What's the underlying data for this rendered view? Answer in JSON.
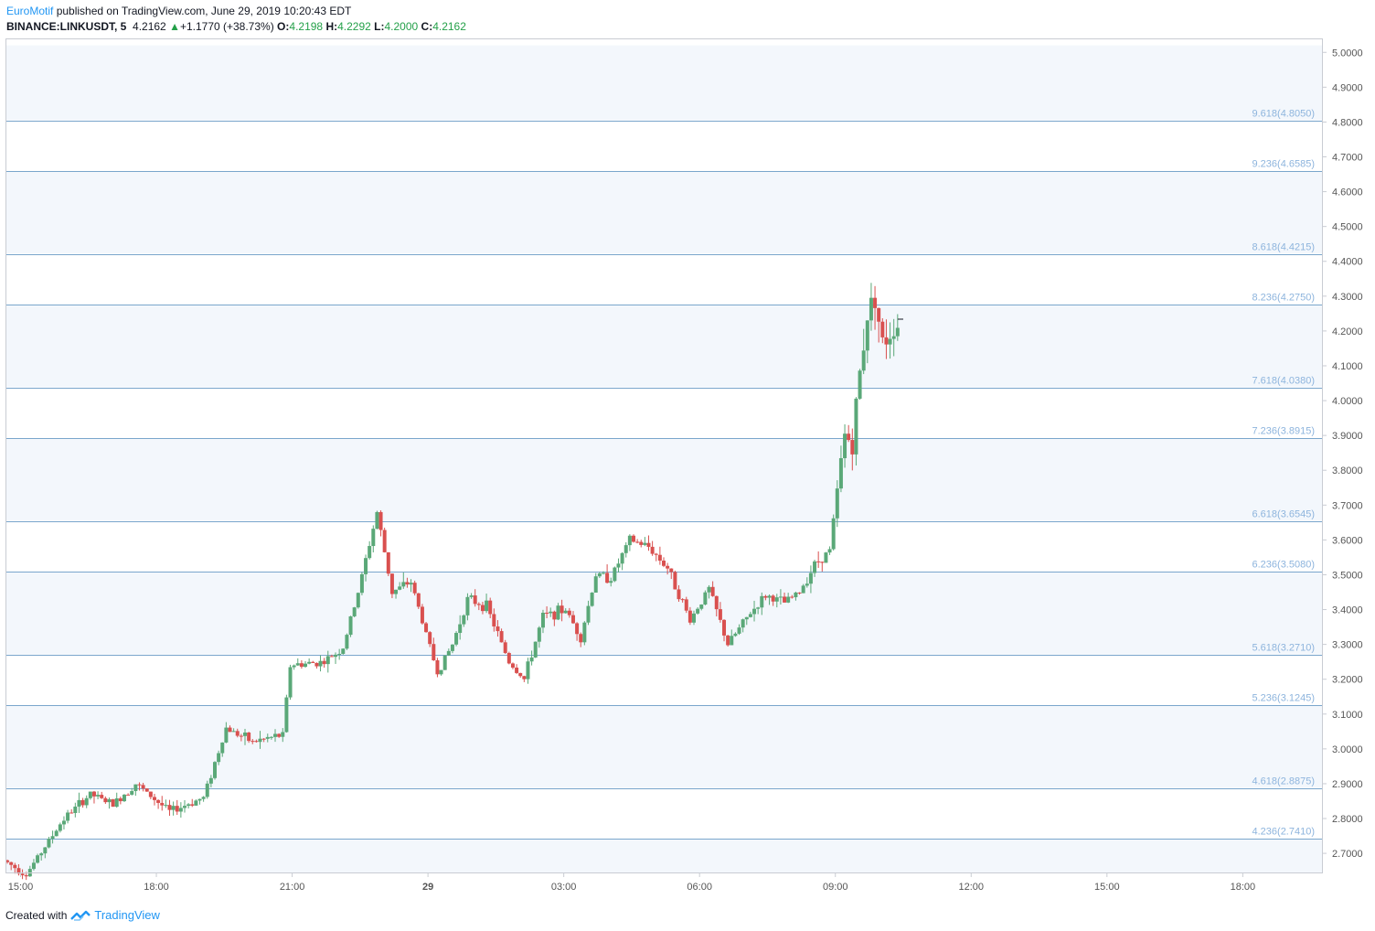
{
  "header": {
    "author": "EuroMotif",
    "published_text": " published on TradingView.com, June 29, 2019 10:20:43 EDT",
    "symbol": "BINANCE:LINKUSDT, 5",
    "last": "4.2162",
    "change_arrow": "▲",
    "change": "+1.1770 (+38.73%)",
    "o_label": "O:",
    "o_value": "4.2198",
    "h_label": "H:",
    "h_value": "4.2292",
    "l_label": "L:",
    "l_value": "4.2000",
    "c_label": "C:",
    "c_value": "4.2162"
  },
  "footer": {
    "created_with": "Created with",
    "brand": "TradingView"
  },
  "colors": {
    "up": "#5aa878",
    "down": "#d9504f",
    "fib_line": "#7aa6cc",
    "fib_label": "#8db4dd",
    "band_fill": "#f3f7fc",
    "axis_text": "#555555",
    "accent": "#2196f3"
  },
  "chart_data": {
    "type": "candlestick",
    "symbol": "BINANCE:LINKUSDT",
    "interval": "5",
    "y_range": [
      2.62,
      5.02
    ],
    "y_ticks": [
      "2.7000",
      "2.8000",
      "2.9000",
      "3.0000",
      "3.1000",
      "3.2000",
      "3.3000",
      "3.4000",
      "3.5000",
      "3.6000",
      "3.7000",
      "3.8000",
      "3.9000",
      "4.0000",
      "4.1000",
      "4.2000",
      "4.3000",
      "4.4000",
      "4.5000",
      "4.6000",
      "4.7000",
      "4.8000",
      "4.9000",
      "5.0000"
    ],
    "x_ticks": [
      "15:00",
      "18:00",
      "21:00",
      "29",
      "03:00",
      "06:00",
      "09:00",
      "12:00",
      "15:00",
      "18:00"
    ],
    "x_start": "2019-06-28 14:40",
    "x_end": "2019-06-29 19:45",
    "fib_levels": [
      {
        "ratio": "4.236",
        "price": 2.741,
        "label": "4.236(2.7410)"
      },
      {
        "ratio": "4.618",
        "price": 2.8875,
        "label": "4.618(2.8875)"
      },
      {
        "ratio": "5.236",
        "price": 3.1245,
        "label": "5.236(3.1245)"
      },
      {
        "ratio": "5.618",
        "price": 3.271,
        "label": "5.618(3.2710)"
      },
      {
        "ratio": "6.236",
        "price": 3.508,
        "label": "6.236(3.5080)"
      },
      {
        "ratio": "6.618",
        "price": 3.6545,
        "label": "6.618(3.6545)"
      },
      {
        "ratio": "7.236",
        "price": 3.8915,
        "label": "7.236(3.8915)"
      },
      {
        "ratio": "7.618",
        "price": 4.038,
        "label": "7.618(4.0380)"
      },
      {
        "ratio": "8.236",
        "price": 4.275,
        "label": "8.236(4.2750)"
      },
      {
        "ratio": "8.618",
        "price": 4.4215,
        "label": "8.618(4.4215)"
      },
      {
        "ratio": "9.236",
        "price": 4.6585,
        "label": "9.236(4.6585)"
      },
      {
        "ratio": "9.618",
        "price": 4.805,
        "label": "9.618(4.8050)"
      }
    ],
    "shaded_bands": [
      [
        2.62,
        2.741
      ],
      [
        2.8875,
        3.1245
      ],
      [
        3.271,
        3.508
      ],
      [
        3.6545,
        3.8915
      ],
      [
        4.038,
        4.275
      ],
      [
        4.4215,
        4.6585
      ],
      [
        4.805,
        5.02
      ]
    ],
    "price_anchors": [
      {
        "time": "2019-06-28 14:40",
        "price": 2.68
      },
      {
        "time": "2019-06-28 15:10",
        "price": 2.64
      },
      {
        "time": "2019-06-28 16:00",
        "price": 2.8
      },
      {
        "time": "2019-06-28 16:35",
        "price": 2.87
      },
      {
        "time": "2019-06-28 17:05",
        "price": 2.84
      },
      {
        "time": "2019-06-28 17:35",
        "price": 2.9
      },
      {
        "time": "2019-06-28 18:20",
        "price": 2.82
      },
      {
        "time": "2019-06-28 19:05",
        "price": 2.86
      },
      {
        "time": "2019-06-28 19:35",
        "price": 3.06
      },
      {
        "time": "2019-06-28 20:10",
        "price": 3.02
      },
      {
        "time": "2019-06-28 20:50",
        "price": 3.04
      },
      {
        "time": "2019-06-28 21:00",
        "price": 3.24
      },
      {
        "time": "2019-06-28 21:45",
        "price": 3.25
      },
      {
        "time": "2019-06-28 22:10",
        "price": 3.29
      },
      {
        "time": "2019-06-28 22:30",
        "price": 3.45
      },
      {
        "time": "2019-06-28 22:55",
        "price": 3.68
      },
      {
        "time": "2019-06-28 23:15",
        "price": 3.45
      },
      {
        "time": "2019-06-28 23:40",
        "price": 3.48
      },
      {
        "time": "2019-06-29 00:15",
        "price": 3.22
      },
      {
        "time": "2019-06-29 00:35",
        "price": 3.3
      },
      {
        "time": "2019-06-29 00:55",
        "price": 3.43
      },
      {
        "time": "2019-06-29 01:20",
        "price": 3.41
      },
      {
        "time": "2019-06-29 01:50",
        "price": 3.25
      },
      {
        "time": "2019-06-29 02:10",
        "price": 3.2
      },
      {
        "time": "2019-06-29 02:35",
        "price": 3.38
      },
      {
        "time": "2019-06-29 03:05",
        "price": 3.4
      },
      {
        "time": "2019-06-29 03:25",
        "price": 3.32
      },
      {
        "time": "2019-06-29 03:45",
        "price": 3.5
      },
      {
        "time": "2019-06-29 04:05",
        "price": 3.49
      },
      {
        "time": "2019-06-29 04:30",
        "price": 3.6
      },
      {
        "time": "2019-06-29 04:55",
        "price": 3.58
      },
      {
        "time": "2019-06-29 05:20",
        "price": 3.52
      },
      {
        "time": "2019-06-29 05:50",
        "price": 3.37
      },
      {
        "time": "2019-06-29 06:15",
        "price": 3.46
      },
      {
        "time": "2019-06-29 06:40",
        "price": 3.3
      },
      {
        "time": "2019-06-29 07:10",
        "price": 3.39
      },
      {
        "time": "2019-06-29 07:30",
        "price": 3.44
      },
      {
        "time": "2019-06-29 07:55",
        "price": 3.42
      },
      {
        "time": "2019-06-29 08:15",
        "price": 3.45
      },
      {
        "time": "2019-06-29 08:35",
        "price": 3.53
      },
      {
        "time": "2019-06-29 08:55",
        "price": 3.57
      },
      {
        "time": "2019-06-29 09:05",
        "price": 3.74
      },
      {
        "time": "2019-06-29 09:15",
        "price": 3.9
      },
      {
        "time": "2019-06-29 09:25",
        "price": 3.88
      },
      {
        "time": "2019-06-29 09:35",
        "price": 4.08
      },
      {
        "time": "2019-06-29 09:45",
        "price": 4.25
      },
      {
        "time": "2019-06-29 09:55",
        "price": 4.3
      },
      {
        "time": "2019-06-29 10:05",
        "price": 4.16
      },
      {
        "time": "2019-06-29 10:20",
        "price": 4.2162
      }
    ]
  }
}
